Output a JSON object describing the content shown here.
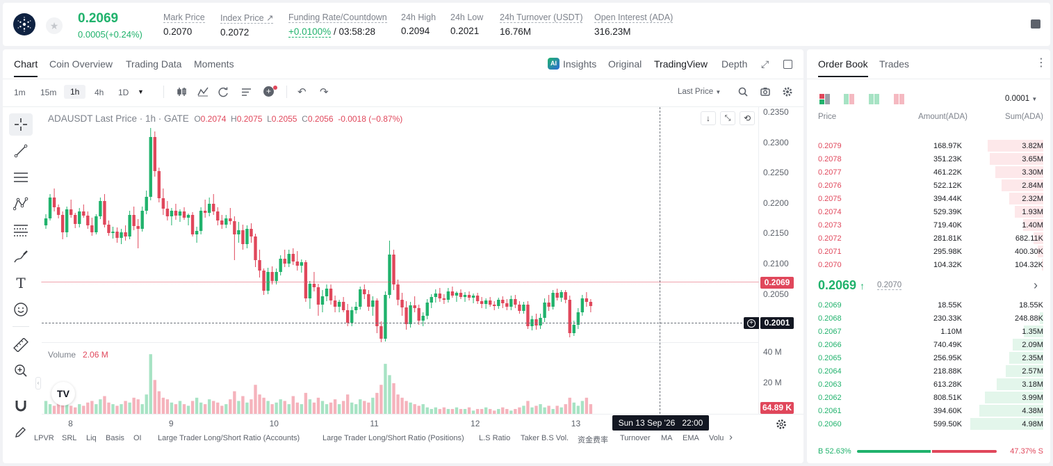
{
  "header": {
    "last_price": "0.2069",
    "change": "0.0005(+0.24%)",
    "stats": [
      {
        "label": "Mark Price",
        "value": "0.2070"
      },
      {
        "label": "Index Price ↗",
        "value": "0.2072"
      },
      {
        "label": "Funding Rate/Countdown",
        "value": "+0.0100%",
        "value2": " / 03:58:28"
      },
      {
        "label": "24h High",
        "value": "0.2094"
      },
      {
        "label": "24h Low",
        "value": "0.2021"
      },
      {
        "label": "24h Turnover (USDT)",
        "value": "16.76M"
      },
      {
        "label": "Open Interest (ADA)",
        "value": "316.23M"
      }
    ]
  },
  "chart_tabs": [
    "Chart",
    "Coin Overview",
    "Trading Data",
    "Moments"
  ],
  "view_tabs": [
    "Insights",
    "Original",
    "TradingView",
    "Depth"
  ],
  "intervals": [
    "1m",
    "15m",
    "1h",
    "4h",
    "1D"
  ],
  "price_type": "Last Price",
  "ohlc": {
    "symbol": "ADAUSDT Last Price · 1h · GATE",
    "o_label": "O",
    "o": "0.2074",
    "h_label": "H",
    "h": "0.2075",
    "l_label": "L",
    "l": "0.2055",
    "c_label": "C",
    "c": "0.2056",
    "chg": "-0.0018 (−0.87%)"
  },
  "volume": {
    "label": "Volume",
    "value": "2.06 M",
    "axis": [
      "40 M",
      "20 M"
    ],
    "tag": "64.89 K"
  },
  "crosshair": {
    "time": "Sun 13 Sep '26   22:00",
    "price": "0.2001"
  },
  "current_price_tag": "0.2069",
  "indicators": [
    "LPVR",
    "SRL",
    "Liq",
    "Basis",
    "OI",
    "Large Trader Long/Short Ratio (Accounts)",
    "Large Trader Long/Short Ratio (Positions)",
    "L.S Ratio",
    "Taker B.S Vol.",
    "资金费率",
    "Turnover",
    "MA",
    "EMA",
    "Volu"
  ],
  "chart_data": {
    "type": "candlestick",
    "symbol": "ADAUSDT",
    "interval": "1h",
    "y_ticks": [
      "0.2350",
      "0.2300",
      "0.2250",
      "0.2200",
      "0.2150",
      "0.2100",
      "0.2050"
    ],
    "x_ticks": [
      "8",
      "9",
      "10",
      "11",
      "12",
      "13"
    ],
    "ylim": [
      0.2017,
      0.2355
    ],
    "x_tick_index": [
      6,
      30,
      54,
      78,
      102,
      126
    ],
    "ohlc": [
      [
        0.2185,
        0.2201,
        0.218,
        0.2195
      ],
      [
        0.2195,
        0.223,
        0.2192,
        0.2225
      ],
      [
        0.2225,
        0.2238,
        0.2205,
        0.2211
      ],
      [
        0.2211,
        0.2215,
        0.2195,
        0.22
      ],
      [
        0.22,
        0.2205,
        0.2165,
        0.2175
      ],
      [
        0.2175,
        0.2212,
        0.2168,
        0.2208
      ],
      [
        0.2208,
        0.2222,
        0.2196,
        0.22
      ],
      [
        0.22,
        0.2203,
        0.2181,
        0.2187
      ],
      [
        0.2187,
        0.221,
        0.2182,
        0.2205
      ],
      [
        0.2205,
        0.2215,
        0.2196,
        0.2199
      ],
      [
        0.2199,
        0.2205,
        0.218,
        0.2185
      ],
      [
        0.2185,
        0.2196,
        0.217,
        0.2175
      ],
      [
        0.2175,
        0.2201,
        0.2172,
        0.2198
      ],
      [
        0.2198,
        0.2225,
        0.2194,
        0.222
      ],
      [
        0.222,
        0.223,
        0.2182,
        0.2186
      ],
      [
        0.2186,
        0.2192,
        0.217,
        0.2174
      ],
      [
        0.2174,
        0.2183,
        0.2166,
        0.2176
      ],
      [
        0.2176,
        0.2182,
        0.216,
        0.2167
      ],
      [
        0.2167,
        0.218,
        0.2158,
        0.2175
      ],
      [
        0.2175,
        0.2185,
        0.2163,
        0.2169
      ],
      [
        0.2169,
        0.2206,
        0.2165,
        0.22
      ],
      [
        0.22,
        0.2212,
        0.2178,
        0.2184
      ],
      [
        0.2184,
        0.2194,
        0.2152,
        0.218
      ],
      [
        0.218,
        0.2212,
        0.2176,
        0.2206
      ],
      [
        0.2206,
        0.2235,
        0.2201,
        0.2226
      ],
      [
        0.2226,
        0.2325,
        0.2221,
        0.2312
      ],
      [
        0.2312,
        0.232,
        0.2255,
        0.2263
      ],
      [
        0.2263,
        0.2268,
        0.2218,
        0.2224
      ],
      [
        0.2224,
        0.2238,
        0.22,
        0.2209
      ],
      [
        0.2209,
        0.222,
        0.2192,
        0.2198
      ],
      [
        0.2198,
        0.221,
        0.2185,
        0.2206
      ],
      [
        0.2206,
        0.2216,
        0.2193,
        0.2199
      ],
      [
        0.2199,
        0.2208,
        0.219,
        0.2205
      ],
      [
        0.2205,
        0.2211,
        0.2193,
        0.2196
      ],
      [
        0.2196,
        0.2202,
        0.2185,
        0.22
      ],
      [
        0.22,
        0.2204,
        0.2169,
        0.2172
      ],
      [
        0.2172,
        0.2183,
        0.216,
        0.2177
      ],
      [
        0.2177,
        0.2211,
        0.2172,
        0.2206
      ],
      [
        0.2206,
        0.2222,
        0.2196,
        0.2203
      ],
      [
        0.2203,
        0.2225,
        0.2198,
        0.2216
      ],
      [
        0.2216,
        0.223,
        0.22,
        0.2205
      ],
      [
        0.2205,
        0.2211,
        0.2185,
        0.2192
      ],
      [
        0.2192,
        0.22,
        0.218,
        0.2186
      ],
      [
        0.2186,
        0.22,
        0.2181,
        0.2195
      ],
      [
        0.2195,
        0.221,
        0.2186,
        0.2191
      ],
      [
        0.2191,
        0.2198,
        0.2135,
        0.2172
      ],
      [
        0.2172,
        0.219,
        0.216,
        0.2178
      ],
      [
        0.2178,
        0.2186,
        0.215,
        0.2158
      ],
      [
        0.2158,
        0.2185,
        0.2152,
        0.218
      ],
      [
        0.218,
        0.2188,
        0.216,
        0.2169
      ],
      [
        0.2169,
        0.2173,
        0.2125,
        0.2135
      ],
      [
        0.2135,
        0.215,
        0.211,
        0.212
      ],
      [
        0.212,
        0.2123,
        0.2085,
        0.2091
      ],
      [
        0.2091,
        0.2124,
        0.2086,
        0.2118
      ],
      [
        0.2118,
        0.2126,
        0.21,
        0.2105
      ],
      [
        0.2105,
        0.2123,
        0.21,
        0.2118
      ],
      [
        0.2118,
        0.2142,
        0.2113,
        0.2137
      ],
      [
        0.2137,
        0.215,
        0.2125,
        0.213
      ],
      [
        0.213,
        0.215,
        0.2125,
        0.2144
      ],
      [
        0.2144,
        0.2152,
        0.2128,
        0.2133
      ],
      [
        0.2133,
        0.2148,
        0.212,
        0.2127
      ],
      [
        0.2127,
        0.2136,
        0.2117,
        0.2132
      ],
      [
        0.2132,
        0.2135,
        0.2075,
        0.208
      ],
      [
        0.208,
        0.2105,
        0.2065,
        0.2101
      ],
      [
        0.2101,
        0.2118,
        0.209,
        0.2096
      ],
      [
        0.2096,
        0.2101,
        0.2055,
        0.2071
      ],
      [
        0.2071,
        0.2092,
        0.206,
        0.2083
      ],
      [
        0.2083,
        0.21,
        0.2076,
        0.2094
      ],
      [
        0.2094,
        0.21,
        0.2071,
        0.2077
      ],
      [
        0.2077,
        0.2084,
        0.206,
        0.2068
      ],
      [
        0.2068,
        0.2078,
        0.206,
        0.2075
      ],
      [
        0.2075,
        0.2082,
        0.206,
        0.2063
      ],
      [
        0.2063,
        0.2072,
        0.204,
        0.2045
      ],
      [
        0.2045,
        0.2068,
        0.204,
        0.2063
      ],
      [
        0.2063,
        0.2075,
        0.2058,
        0.2068
      ],
      [
        0.2068,
        0.2097,
        0.2064,
        0.2093
      ],
      [
        0.2093,
        0.21,
        0.2079,
        0.2086
      ],
      [
        0.2086,
        0.2092,
        0.2062,
        0.2068
      ],
      [
        0.2068,
        0.2083,
        0.2055,
        0.2077
      ],
      [
        0.2077,
        0.208,
        0.203,
        0.204
      ],
      [
        0.204,
        0.2047,
        0.201,
        0.2022
      ],
      [
        0.2022,
        0.209,
        0.2018,
        0.2085
      ],
      [
        0.2085,
        0.2163,
        0.208,
        0.2143
      ],
      [
        0.2143,
        0.215,
        0.2092,
        0.21
      ],
      [
        0.21,
        0.2107,
        0.207,
        0.2078
      ],
      [
        0.2078,
        0.2088,
        0.2055,
        0.2067
      ],
      [
        0.2067,
        0.2076,
        0.2035,
        0.2043
      ],
      [
        0.2043,
        0.2075,
        0.2038,
        0.207
      ],
      [
        0.207,
        0.2083,
        0.206,
        0.2066
      ],
      [
        0.2066,
        0.2071,
        0.2042,
        0.2048
      ],
      [
        0.2048,
        0.206,
        0.204,
        0.2055
      ],
      [
        0.2055,
        0.2079,
        0.205,
        0.2074
      ],
      [
        0.2074,
        0.2086,
        0.2066,
        0.2082
      ],
      [
        0.2082,
        0.2093,
        0.2074,
        0.2087
      ],
      [
        0.2087,
        0.2095,
        0.2075,
        0.208
      ],
      [
        0.208,
        0.2086,
        0.2072,
        0.2078
      ],
      [
        0.2078,
        0.2095,
        0.2074,
        0.209
      ],
      [
        0.209,
        0.2097,
        0.2081,
        0.2084
      ],
      [
        0.2084,
        0.209,
        0.2075,
        0.2088
      ],
      [
        0.2088,
        0.2093,
        0.2079,
        0.2082
      ],
      [
        0.2082,
        0.2089,
        0.2075,
        0.2085
      ],
      [
        0.2085,
        0.209,
        0.2077,
        0.2081
      ],
      [
        0.2081,
        0.2087,
        0.2073,
        0.2084
      ],
      [
        0.2084,
        0.2088,
        0.2072,
        0.2076
      ],
      [
        0.2076,
        0.2082,
        0.2066,
        0.2072
      ],
      [
        0.2072,
        0.208,
        0.2065,
        0.2077
      ],
      [
        0.2077,
        0.2082,
        0.2068,
        0.2071
      ],
      [
        0.2071,
        0.2076,
        0.2063,
        0.2069
      ],
      [
        0.2069,
        0.2081,
        0.2065,
        0.2078
      ],
      [
        0.2078,
        0.2083,
        0.2066,
        0.2073
      ],
      [
        0.2073,
        0.2079,
        0.2063,
        0.2068
      ],
      [
        0.2068,
        0.2084,
        0.2063,
        0.2079
      ],
      [
        0.2079,
        0.2085,
        0.2066,
        0.2071
      ],
      [
        0.2071,
        0.2076,
        0.2058,
        0.2062
      ],
      [
        0.2062,
        0.2075,
        0.2058,
        0.2071
      ],
      [
        0.2071,
        0.2076,
        0.2036,
        0.204
      ],
      [
        0.204,
        0.2055,
        0.2034,
        0.205
      ],
      [
        0.205,
        0.2058,
        0.2035,
        0.2041
      ],
      [
        0.2041,
        0.2058,
        0.2036,
        0.2052
      ],
      [
        0.2052,
        0.208,
        0.2046,
        0.2074
      ],
      [
        0.2074,
        0.2085,
        0.2062,
        0.2068
      ],
      [
        0.2068,
        0.2092,
        0.2064,
        0.2088
      ],
      [
        0.2088,
        0.2094,
        0.2077,
        0.2081
      ],
      [
        0.2081,
        0.2092,
        0.2075,
        0.2089
      ],
      [
        0.2089,
        0.2092,
        0.2073,
        0.2078
      ],
      [
        0.2078,
        0.2084,
        0.2024,
        0.203
      ],
      [
        0.203,
        0.2048,
        0.2026,
        0.2042
      ],
      [
        0.2042,
        0.2066,
        0.2036,
        0.206
      ],
      [
        0.206,
        0.2085,
        0.2055,
        0.208
      ],
      [
        0.208,
        0.2089,
        0.2068,
        0.2075
      ],
      [
        0.2075,
        0.2079,
        0.206,
        0.2069
      ]
    ],
    "volume": [
      8,
      6,
      5,
      7,
      9,
      6,
      5,
      4,
      6,
      5,
      7,
      8,
      6,
      9,
      11,
      7,
      6,
      5,
      6,
      8,
      7,
      10,
      9,
      6,
      12,
      37,
      21,
      14,
      10,
      9,
      7,
      6,
      8,
      6,
      5,
      8,
      10,
      7,
      6,
      9,
      8,
      7,
      5,
      6,
      9,
      14,
      8,
      11,
      7,
      9,
      18,
      12,
      10,
      8,
      6,
      7,
      9,
      8,
      6,
      11,
      7,
      6,
      13,
      9,
      7,
      10,
      8,
      6,
      7,
      9,
      6,
      8,
      12,
      7,
      6,
      9,
      8,
      7,
      10,
      13,
      18,
      31,
      24,
      19,
      12,
      10,
      8,
      7,
      6,
      5,
      6,
      4,
      3,
      4,
      3,
      4,
      3,
      3,
      4,
      3,
      3,
      4,
      2,
      3,
      3,
      4,
      3,
      2,
      3,
      4,
      3,
      2,
      3,
      4,
      5,
      8,
      4,
      5,
      6,
      4,
      5,
      3,
      5,
      4,
      6,
      10,
      7,
      5,
      8,
      10,
      6
    ],
    "vol_ylim": [
      0,
      44
    ]
  },
  "orderbook": {
    "tabs": [
      "Order Book",
      "Trades"
    ],
    "precision": "0.0001",
    "headers": [
      "Price",
      "Amount(ADA)",
      "Sum(ADA)"
    ],
    "asks": [
      {
        "price": "0.2079",
        "amount": "168.97K",
        "sum": "3.82M"
      },
      {
        "price": "0.2078",
        "amount": "351.23K",
        "sum": "3.65M"
      },
      {
        "price": "0.2077",
        "amount": "461.22K",
        "sum": "3.30M"
      },
      {
        "price": "0.2076",
        "amount": "522.12K",
        "sum": "2.84M"
      },
      {
        "price": "0.2075",
        "amount": "394.44K",
        "sum": "2.32M"
      },
      {
        "price": "0.2074",
        "amount": "529.39K",
        "sum": "1.93M"
      },
      {
        "price": "0.2073",
        "amount": "719.40K",
        "sum": "1.40M"
      },
      {
        "price": "0.2072",
        "amount": "281.81K",
        "sum": "682.11K"
      },
      {
        "price": "0.2071",
        "amount": "295.98K",
        "sum": "400.30K"
      },
      {
        "price": "0.2070",
        "amount": "104.32K",
        "sum": "104.32K"
      }
    ],
    "mid_price": "0.2069",
    "mid_arrow": "↑",
    "mid_mark": "0.2070",
    "bids": [
      {
        "price": "0.2069",
        "amount": "18.55K",
        "sum": "18.55K"
      },
      {
        "price": "0.2068",
        "amount": "230.33K",
        "sum": "248.88K"
      },
      {
        "price": "0.2067",
        "amount": "1.10M",
        "sum": "1.35M"
      },
      {
        "price": "0.2066",
        "amount": "740.49K",
        "sum": "2.09M"
      },
      {
        "price": "0.2065",
        "amount": "256.95K",
        "sum": "2.35M"
      },
      {
        "price": "0.2064",
        "amount": "218.88K",
        "sum": "2.57M"
      },
      {
        "price": "0.2063",
        "amount": "613.28K",
        "sum": "3.18M"
      },
      {
        "price": "0.2062",
        "amount": "808.51K",
        "sum": "3.99M"
      },
      {
        "price": "0.2061",
        "amount": "394.60K",
        "sum": "4.38M"
      },
      {
        "price": "0.2060",
        "amount": "599.50K",
        "sum": "4.98M"
      }
    ],
    "depth_max": 5.0,
    "ask_sum_values": [
      3.82,
      3.65,
      3.3,
      2.84,
      2.32,
      1.93,
      1.4,
      0.68211,
      0.4003,
      0.10432
    ],
    "bid_sum_values": [
      0.01855,
      0.24888,
      1.35,
      2.09,
      2.35,
      2.57,
      3.18,
      3.99,
      4.38,
      4.98
    ],
    "ratio_b_label": "B",
    "ratio_b": "52.63%",
    "ratio_s": "47.37%",
    "ratio_s_label": "S",
    "ratio_b_value": 52.63
  },
  "colors": {
    "up": "#20b26c",
    "down": "#e0475b"
  }
}
